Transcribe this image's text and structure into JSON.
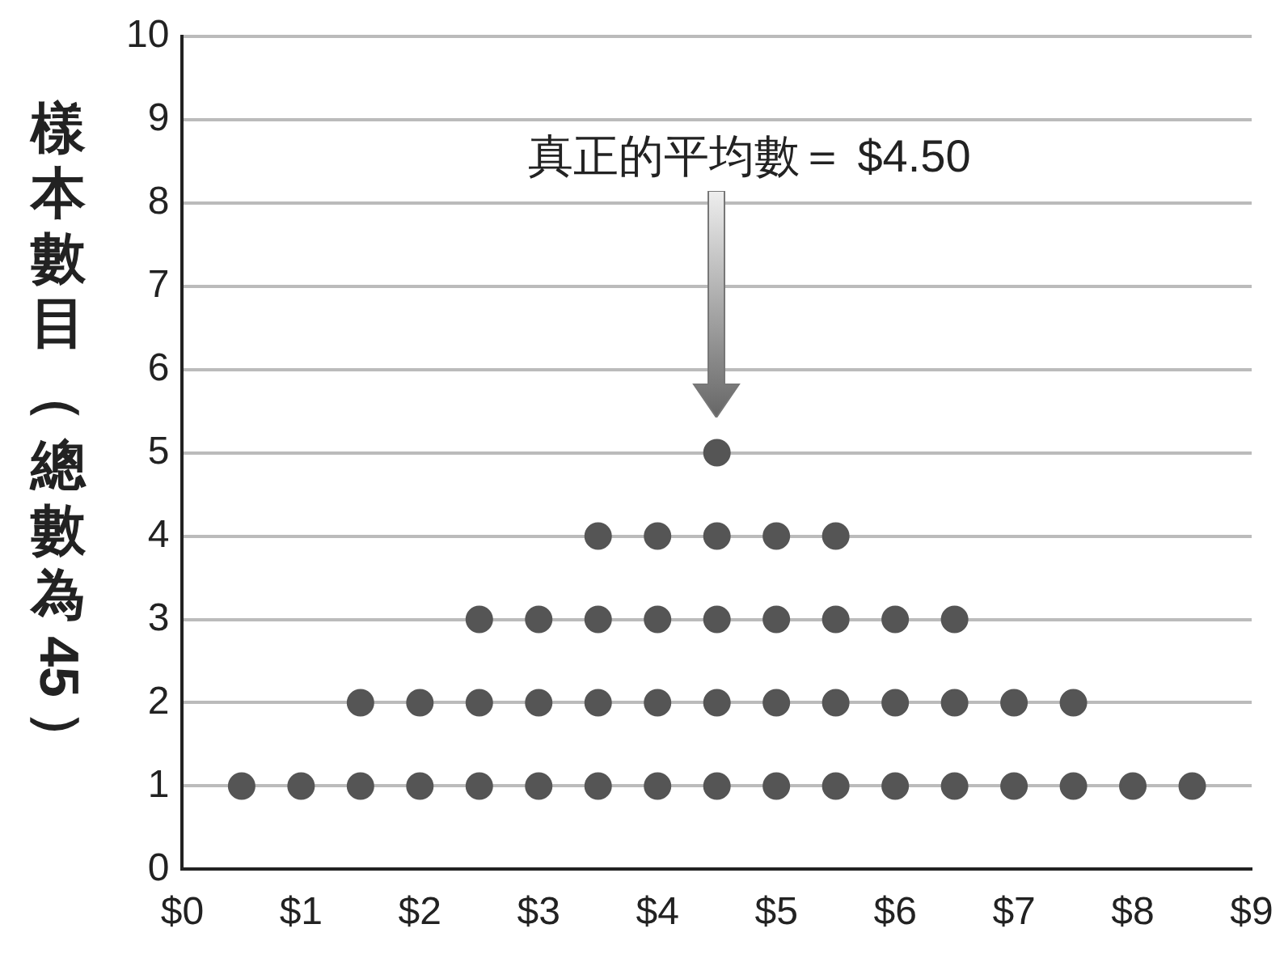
{
  "chart_data": {
    "type": "scatter",
    "ylabel": "樣本數目（總數為 45）",
    "x": [
      0.5,
      1,
      1.5,
      1.5,
      2,
      2,
      2.5,
      2.5,
      2.5,
      3,
      3,
      3,
      3.5,
      3.5,
      3.5,
      3.5,
      4,
      4,
      4,
      4,
      4.5,
      4.5,
      4.5,
      4.5,
      4.5,
      5,
      5,
      5,
      5,
      5.5,
      5.5,
      5.5,
      5.5,
      6,
      6,
      6,
      6.5,
      6.5,
      6.5,
      7,
      7,
      7.5,
      7.5,
      8,
      8.5
    ],
    "values": [
      1,
      1,
      1,
      2,
      1,
      2,
      1,
      2,
      3,
      1,
      2,
      3,
      1,
      2,
      3,
      4,
      1,
      2,
      3,
      4,
      1,
      2,
      3,
      4,
      5,
      1,
      2,
      3,
      4,
      1,
      2,
      3,
      4,
      1,
      2,
      3,
      1,
      2,
      3,
      1,
      2,
      1,
      2,
      1,
      1
    ],
    "color": "#555555",
    "marker": "circle",
    "xlim": [
      0,
      9
    ],
    "xticks": [
      {
        "value": 0,
        "label": "$0"
      },
      {
        "value": 1,
        "label": "$1"
      },
      {
        "value": 2,
        "label": "$2"
      },
      {
        "value": 3,
        "label": "$3"
      },
      {
        "value": 4,
        "label": "$4"
      },
      {
        "value": 5,
        "label": "$5"
      },
      {
        "value": 6,
        "label": "$6"
      },
      {
        "value": 7,
        "label": "$7"
      },
      {
        "value": 8,
        "label": "$8"
      },
      {
        "value": 9,
        "label": "$9"
      }
    ],
    "ylim": [
      0,
      10
    ],
    "yticks": [
      0,
      1,
      2,
      3,
      4,
      5,
      6,
      7,
      8,
      9,
      10
    ],
    "grid": "y",
    "annotations": [
      "真正的平均數＝ $4.50"
    ]
  }
}
